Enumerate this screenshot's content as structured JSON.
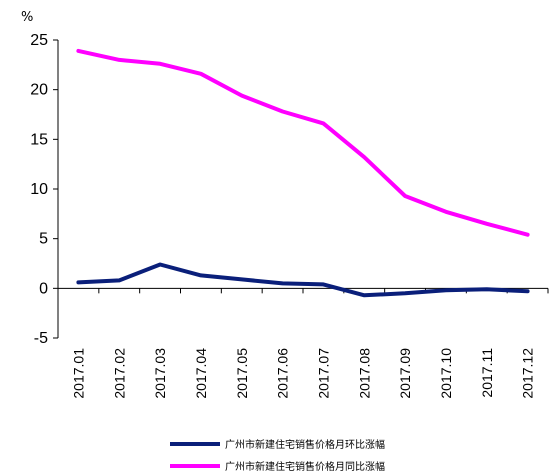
{
  "chart_data": {
    "type": "line",
    "title": "",
    "xlabel": "",
    "ylabel": "%",
    "ylim": [
      -5,
      25
    ],
    "yticks": [
      -5,
      0,
      5,
      10,
      15,
      20,
      25
    ],
    "ytick_labels": [
      "-5",
      "0",
      "5",
      "10",
      "15",
      "20",
      "25"
    ],
    "categories": [
      "2017.01",
      "2017.02",
      "2017.03",
      "2017.04",
      "2017.05",
      "2017.06",
      "2017.07",
      "2017.08",
      "2017.09",
      "2017.10",
      "2017.11",
      "2017.12"
    ],
    "grid": false,
    "legend_position": "bottom",
    "series": [
      {
        "name": "广州市新建住宅销售价格月环比涨幅",
        "color": "#0a1f7a",
        "values": [
          0.6,
          0.8,
          2.4,
          1.3,
          0.9,
          0.5,
          0.4,
          -0.7,
          -0.5,
          -0.2,
          -0.1,
          -0.3
        ]
      },
      {
        "name": "广州市新建住宅销售价格月同比涨幅",
        "color": "#ff00ff",
        "values": [
          23.9,
          23.0,
          22.6,
          21.6,
          19.4,
          17.8,
          16.6,
          13.2,
          9.3,
          7.7,
          6.5,
          5.4
        ]
      }
    ]
  }
}
